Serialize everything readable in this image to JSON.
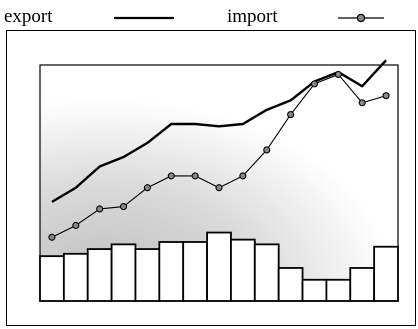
{
  "legend": {
    "export_label": "export",
    "import_label": "import"
  },
  "chart_data": {
    "type": "line",
    "title": "",
    "xlabel": "",
    "ylabel": "",
    "grid": false,
    "legend_position": "top",
    "x": [
      1,
      2,
      3,
      4,
      5,
      6,
      7,
      8,
      9,
      10,
      11,
      12,
      13,
      14,
      15
    ],
    "ylim": [
      0,
      100
    ],
    "series": [
      {
        "name": "export",
        "type": "line",
        "marker": "none",
        "color": "#000000",
        "values": [
          42,
          48,
          57,
          61,
          67,
          75,
          75,
          74,
          75,
          81,
          85,
          93,
          97,
          91,
          102
        ]
      },
      {
        "name": "import",
        "type": "line",
        "marker": "circle",
        "color": "#000000",
        "values": [
          27,
          32,
          39,
          40,
          48,
          53,
          53,
          48,
          53,
          64,
          79,
          92,
          96,
          84,
          87
        ]
      },
      {
        "name": "",
        "type": "bar",
        "color": "#ffffff",
        "values": [
          19,
          20,
          22,
          24,
          22,
          25,
          25,
          29,
          26,
          24,
          14,
          9,
          9,
          14,
          23
        ]
      }
    ],
    "colors": {
      "line": "#000000",
      "bar_fill": "#ffffff",
      "bar_stroke": "#000000",
      "plot_gradient_dark": "#bdbdbd",
      "plot_gradient_light": "#ffffff"
    }
  }
}
